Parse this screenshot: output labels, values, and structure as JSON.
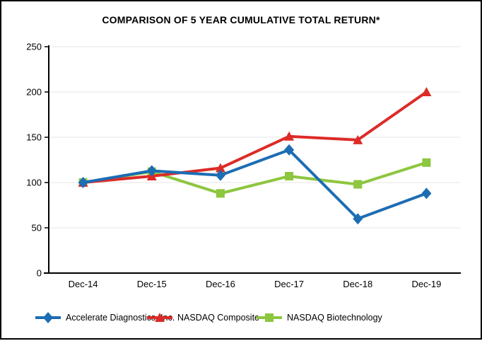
{
  "chart": {
    "title": "COMPARISON OF 5 YEAR CUMULATIVE TOTAL RETURN*"
  },
  "chart_data": {
    "type": "line",
    "title": "COMPARISON OF 5 YEAR CUMULATIVE TOTAL RETURN*",
    "categories": [
      "Dec-14",
      "Dec-15",
      "Dec-16",
      "Dec-17",
      "Dec-18",
      "Dec-19"
    ],
    "series": [
      {
        "name": "Accelerate Diagnostics, Inc.",
        "color": "#1C6DB4",
        "marker": "diamond",
        "values": [
          100,
          113,
          108,
          136,
          60,
          88
        ]
      },
      {
        "name": "NASDAQ Composite",
        "color": "#DD2B27",
        "marker": "triangle",
        "values": [
          100,
          107,
          116,
          151,
          147,
          200
        ]
      },
      {
        "name": "NASDAQ Biotechnology",
        "color": "#8DC63F",
        "marker": "square",
        "values": [
          100,
          112,
          88,
          107,
          98,
          122
        ]
      }
    ],
    "xlabel": "",
    "ylabel": "",
    "ylim": [
      0,
      250
    ],
    "yticks": [
      0,
      50,
      100,
      150,
      200,
      250
    ],
    "grid": true,
    "gridline_color": "#E5E5E5",
    "axis_color": "#000000",
    "legend_position": "bottom"
  }
}
